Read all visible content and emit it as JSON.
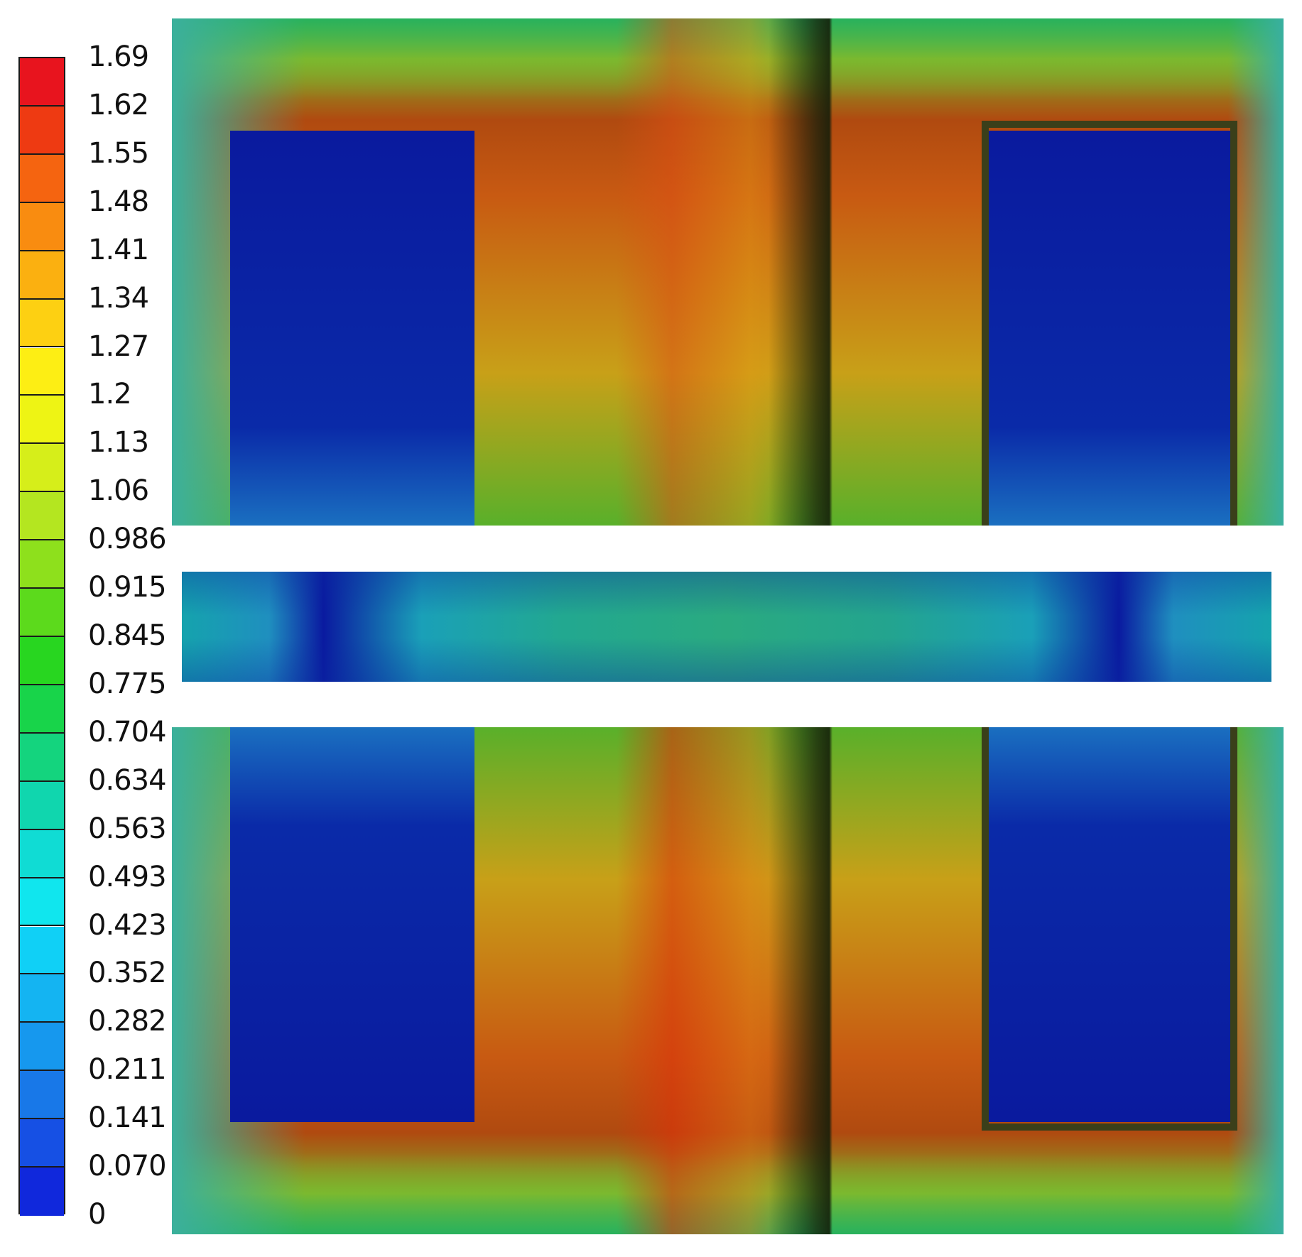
{
  "chart_data": {
    "type": "heatmap",
    "title": "",
    "xlabel": "",
    "ylabel": "",
    "colorbar": {
      "min": 0,
      "max": 1.69,
      "placement": "left",
      "tick_labels": [
        "1.69",
        "1.62",
        "1.55",
        "1.48",
        "1.41",
        "1.34",
        "1.27",
        "1.2",
        "1.13",
        "1.06",
        "0.986",
        "0.915",
        "0.845",
        "0.775",
        "0.704",
        "0.634",
        "0.563",
        "0.493",
        "0.423",
        "0.352",
        "0.282",
        "0.211",
        "0.141",
        "0.070",
        "0"
      ],
      "colors": [
        "#e8141e",
        "#ee3a12",
        "#f56410",
        "#f98c10",
        "#fbb010",
        "#fdd012",
        "#fdee14",
        "#eef414",
        "#d6ee1a",
        "#b4e620",
        "#8ee01c",
        "#5cda1c",
        "#28d620",
        "#18d44a",
        "#14d47e",
        "#10d6ae",
        "#10dcd4",
        "#10e6ee",
        "#10d0f6",
        "#14b4f2",
        "#1698ee",
        "#1878e8",
        "#1650e4",
        "#1028dc"
      ]
    },
    "regions": {
      "top": "field region",
      "middle": "strip region",
      "bottom": "field region"
    }
  }
}
